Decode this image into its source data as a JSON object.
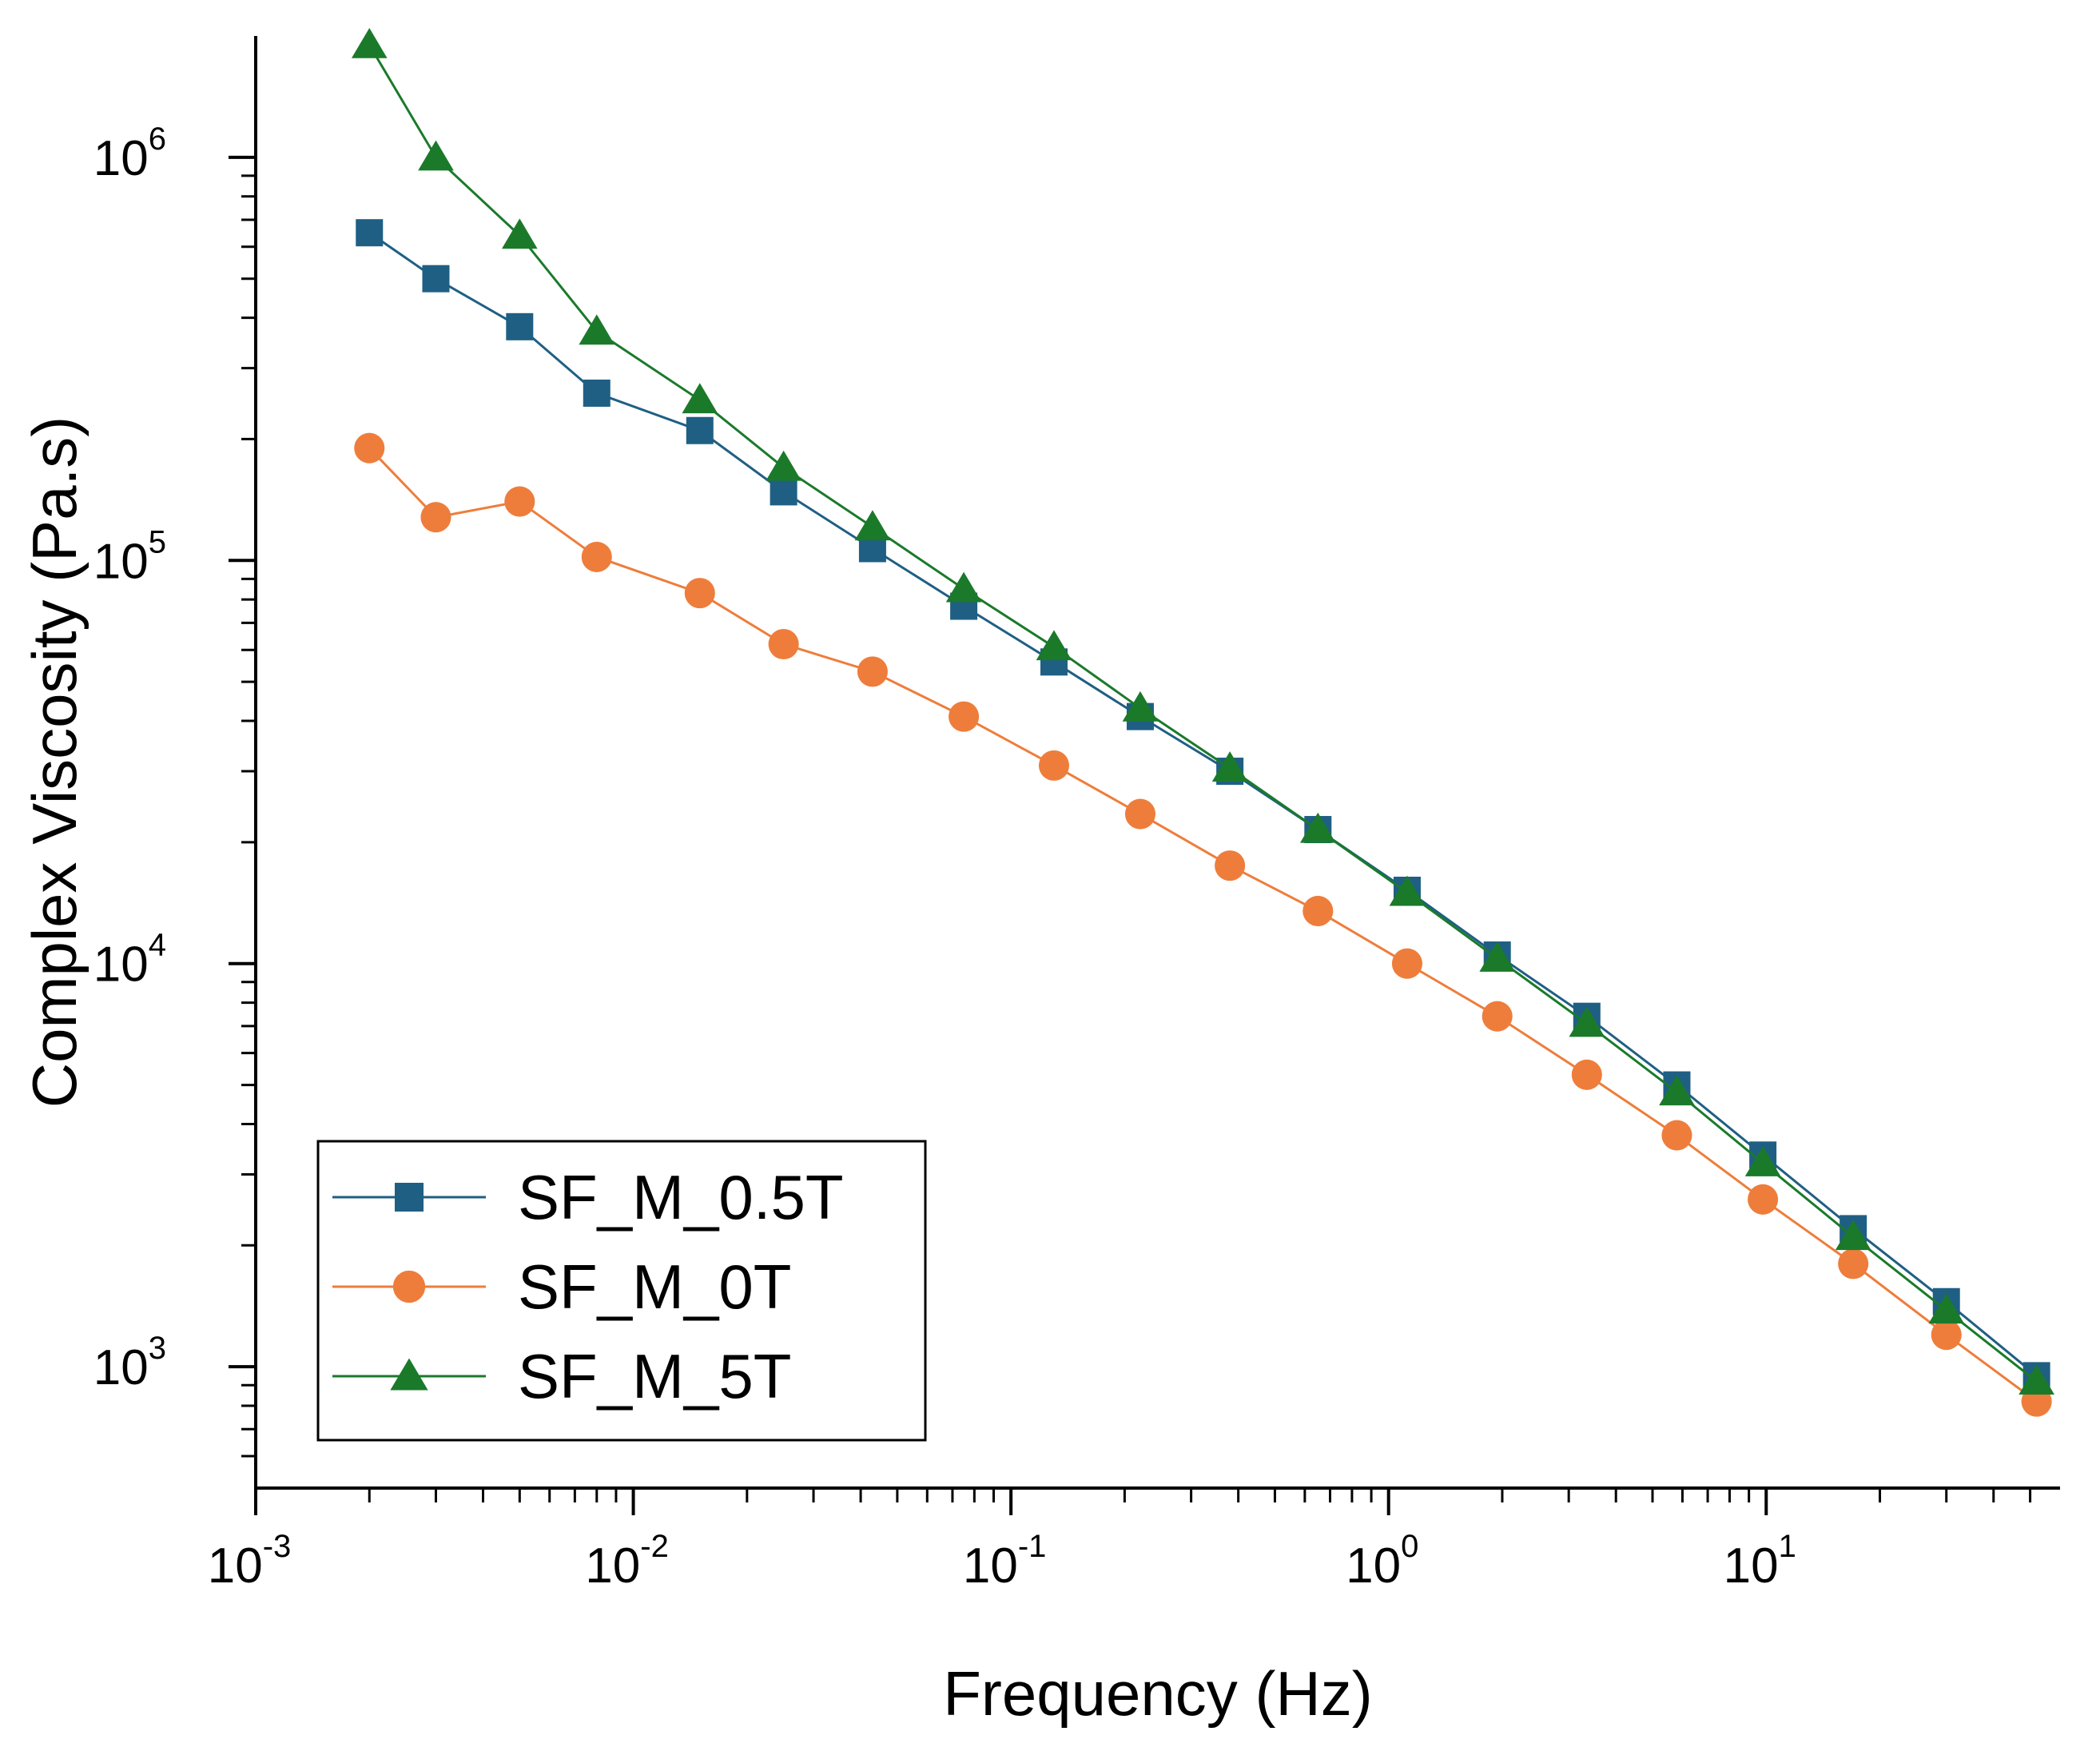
{
  "chart_data": {
    "type": "line",
    "x_scale": "log",
    "y_scale": "log",
    "xlabel": "Frequency (Hz)",
    "ylabel": "Complex Viscosity (Pa.s)",
    "xlim": [
      0.001,
      60
    ],
    "ylim": [
      500,
      2000000
    ],
    "x_ticks": [
      {
        "value": 0.001,
        "base": "10",
        "exp": "-3"
      },
      {
        "value": 0.01,
        "base": "10",
        "exp": "-2"
      },
      {
        "value": 0.1,
        "base": "10",
        "exp": "-1"
      },
      {
        "value": 1,
        "base": "10",
        "exp": "0"
      },
      {
        "value": 10,
        "base": "10",
        "exp": "1"
      }
    ],
    "y_ticks": [
      {
        "value": 1000,
        "base": "10",
        "exp": "3"
      },
      {
        "value": 10000,
        "base": "10",
        "exp": "4"
      },
      {
        "value": 100000,
        "base": "10",
        "exp": "5"
      },
      {
        "value": 1000000,
        "base": "10",
        "exp": "6"
      }
    ],
    "x": [
      0.002,
      0.003,
      0.005,
      0.008,
      0.015,
      0.025,
      0.043,
      0.075,
      0.13,
      0.22,
      0.38,
      0.65,
      1.12,
      1.94,
      3.35,
      5.8,
      9.8,
      17,
      30,
      52
    ],
    "series": [
      {
        "name": "SF_M_0.5T",
        "color": "#1f5f84",
        "marker": "square",
        "values": [
          650000,
          500000,
          380000,
          260000,
          210000,
          148000,
          107000,
          77000,
          56000,
          41000,
          30000,
          21500,
          15200,
          10500,
          7400,
          5000,
          3350,
          2200,
          1450,
          950
        ]
      },
      {
        "name": "SF_M_0T",
        "color": "#ee7d3b",
        "marker": "circle",
        "values": [
          190000,
          128000,
          140000,
          102000,
          83000,
          62000,
          53000,
          41000,
          31000,
          23500,
          17500,
          13500,
          10000,
          7400,
          5300,
          3750,
          2600,
          1800,
          1200,
          820
        ]
      },
      {
        "name": "SF_M_5T",
        "color": "#1a7a2a",
        "marker": "triangle",
        "values": [
          1900000,
          1000000,
          640000,
          370000,
          250000,
          170000,
          121000,
          85000,
          61000,
          43000,
          30500,
          21500,
          15000,
          10300,
          7100,
          4800,
          3200,
          2100,
          1380,
          920
        ]
      }
    ],
    "legend": {
      "location": "lower-left",
      "entries": [
        "SF_M_0.5T",
        "SF_M_0T",
        "SF_M_5T"
      ]
    }
  }
}
